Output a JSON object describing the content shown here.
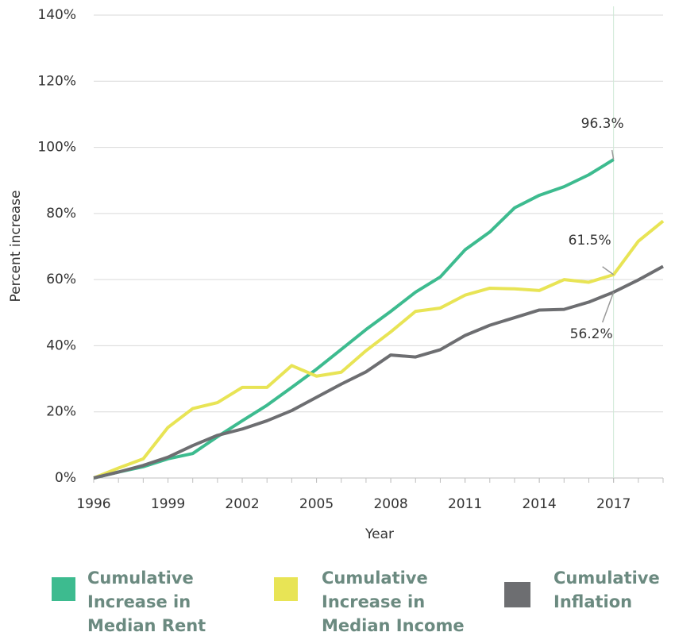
{
  "chart_data": {
    "type": "line",
    "x_label": "Year",
    "y_label": "Percent increase",
    "x": [
      1996,
      1997,
      1998,
      1999,
      2000,
      2001,
      2002,
      2003,
      2004,
      2005,
      2006,
      2007,
      2008,
      2009,
      2010,
      2011,
      2012,
      2013,
      2014,
      2015,
      2016,
      2017,
      2018,
      2019
    ],
    "series": [
      {
        "name": "Cumulative Increase in Median Rent",
        "color": "#3dbb8f",
        "values": [
          0,
          1.8,
          3.4,
          5.8,
          7.4,
          12.5,
          17.3,
          22,
          27.4,
          32.9,
          38.9,
          44.9,
          50.4,
          56.2,
          60.8,
          69,
          74.4,
          81.7,
          85.5,
          88.1,
          91.7,
          96.3,
          null,
          null
        ]
      },
      {
        "name": "Cumulative Increase in Median Income",
        "color": "#e8e455",
        "values": [
          0,
          3,
          5.8,
          15.3,
          21,
          22.8,
          27.4,
          27.4,
          34,
          30.8,
          32,
          38.5,
          44.2,
          50.4,
          51.4,
          55.3,
          57.4,
          57.2,
          56.7,
          60,
          59.2,
          61.5,
          71.6,
          77.7
        ]
      },
      {
        "name": "Cumulative Inflation",
        "color": "#6d6e71",
        "values": [
          0,
          1.8,
          3.8,
          6.3,
          9.8,
          12.9,
          14.8,
          17.3,
          20.4,
          24.4,
          28.4,
          32.1,
          37.2,
          36.6,
          38.8,
          43.1,
          46.2,
          48.5,
          50.8,
          51,
          53.2,
          56.2,
          59.9,
          64
        ]
      }
    ],
    "annotations": [
      {
        "label": "96.3%",
        "x": 2017,
        "y": 96.3
      },
      {
        "label": "61.5%",
        "x": 2017,
        "y": 61.5
      },
      {
        "label": "56.2%",
        "x": 2017,
        "y": 56.2
      }
    ],
    "highlight_x": 2017,
    "xlim": [
      1996,
      2019
    ],
    "xticks": [
      1996,
      1999,
      2002,
      2005,
      2008,
      2011,
      2014,
      2017
    ],
    "ylim": [
      0,
      140
    ],
    "yticks": [
      {
        "value": 0,
        "label": "0%"
      },
      {
        "value": 20,
        "label": "20%"
      },
      {
        "value": 40,
        "label": "40%"
      },
      {
        "value": 60,
        "label": "60%"
      },
      {
        "value": 80,
        "label": "80%"
      },
      {
        "value": 100,
        "label": "100%"
      },
      {
        "value": 120,
        "label": "120%"
      },
      {
        "value": 140,
        "label": "140%"
      }
    ],
    "grid": true,
    "legend": "bottom"
  }
}
